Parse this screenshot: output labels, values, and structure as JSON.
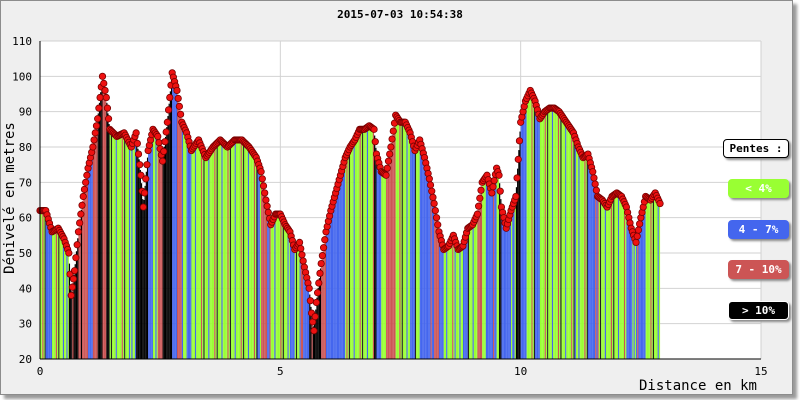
{
  "chart_data": {
    "type": "area",
    "title": "2015-07-03 10:54:38",
    "xlabel": "Distance en km",
    "ylabel": "Dénivelé en metres",
    "xlim": [
      0,
      15
    ],
    "ylim": [
      20,
      110
    ],
    "x_ticks": [
      0,
      5,
      10,
      15
    ],
    "y_ticks": [
      20,
      30,
      40,
      50,
      60,
      70,
      80,
      90,
      100,
      110
    ],
    "grid": true,
    "legend_placement": "right",
    "profile": [
      [
        0.0,
        62
      ],
      [
        0.12,
        62
      ],
      [
        0.25,
        56
      ],
      [
        0.38,
        57
      ],
      [
        0.5,
        54
      ],
      [
        0.6,
        50
      ],
      [
        0.65,
        38
      ],
      [
        0.72,
        45
      ],
      [
        0.8,
        56
      ],
      [
        0.9,
        66
      ],
      [
        1.0,
        74
      ],
      [
        1.1,
        80
      ],
      [
        1.2,
        88
      ],
      [
        1.3,
        100
      ],
      [
        1.38,
        94
      ],
      [
        1.45,
        85
      ],
      [
        1.6,
        83
      ],
      [
        1.75,
        84
      ],
      [
        1.9,
        80
      ],
      [
        2.0,
        84
      ],
      [
        2.1,
        72
      ],
      [
        2.15,
        63
      ],
      [
        2.25,
        79
      ],
      [
        2.35,
        85
      ],
      [
        2.45,
        83
      ],
      [
        2.55,
        76
      ],
      [
        2.65,
        87
      ],
      [
        2.75,
        101
      ],
      [
        2.85,
        96
      ],
      [
        2.95,
        87
      ],
      [
        3.05,
        84
      ],
      [
        3.15,
        79
      ],
      [
        3.3,
        82
      ],
      [
        3.45,
        77
      ],
      [
        3.6,
        80
      ],
      [
        3.75,
        82
      ],
      [
        3.9,
        80
      ],
      [
        4.05,
        82
      ],
      [
        4.2,
        82
      ],
      [
        4.35,
        80
      ],
      [
        4.5,
        77
      ],
      [
        4.6,
        73
      ],
      [
        4.7,
        65
      ],
      [
        4.8,
        58
      ],
      [
        4.9,
        61
      ],
      [
        5.0,
        61
      ],
      [
        5.1,
        58
      ],
      [
        5.2,
        56
      ],
      [
        5.3,
        51
      ],
      [
        5.4,
        53
      ],
      [
        5.5,
        46
      ],
      [
        5.6,
        40
      ],
      [
        5.65,
        33
      ],
      [
        5.7,
        28
      ],
      [
        5.75,
        36
      ],
      [
        5.85,
        47
      ],
      [
        5.95,
        56
      ],
      [
        6.05,
        62
      ],
      [
        6.15,
        67
      ],
      [
        6.25,
        72
      ],
      [
        6.35,
        77
      ],
      [
        6.45,
        80
      ],
      [
        6.55,
        82
      ],
      [
        6.65,
        85
      ],
      [
        6.75,
        85
      ],
      [
        6.85,
        86
      ],
      [
        6.95,
        85
      ],
      [
        7.0,
        78
      ],
      [
        7.1,
        73
      ],
      [
        7.2,
        72
      ],
      [
        7.3,
        80
      ],
      [
        7.4,
        89
      ],
      [
        7.5,
        87
      ],
      [
        7.6,
        87
      ],
      [
        7.7,
        84
      ],
      [
        7.8,
        79
      ],
      [
        7.9,
        82
      ],
      [
        8.0,
        77
      ],
      [
        8.1,
        71
      ],
      [
        8.2,
        64
      ],
      [
        8.3,
        56
      ],
      [
        8.4,
        51
      ],
      [
        8.5,
        52
      ],
      [
        8.6,
        55
      ],
      [
        8.7,
        51
      ],
      [
        8.8,
        52
      ],
      [
        8.9,
        57
      ],
      [
        9.0,
        58
      ],
      [
        9.1,
        61
      ],
      [
        9.2,
        70
      ],
      [
        9.3,
        72
      ],
      [
        9.4,
        67
      ],
      [
        9.5,
        74
      ],
      [
        9.55,
        72
      ],
      [
        9.6,
        63
      ],
      [
        9.7,
        57
      ],
      [
        9.8,
        62
      ],
      [
        9.9,
        66
      ],
      [
        10.0,
        87
      ],
      [
        10.1,
        93
      ],
      [
        10.2,
        96
      ],
      [
        10.3,
        93
      ],
      [
        10.4,
        88
      ],
      [
        10.5,
        90
      ],
      [
        10.6,
        91
      ],
      [
        10.7,
        91
      ],
      [
        10.8,
        90
      ],
      [
        10.9,
        88
      ],
      [
        11.0,
        86
      ],
      [
        11.1,
        84
      ],
      [
        11.2,
        80
      ],
      [
        11.3,
        77
      ],
      [
        11.4,
        78
      ],
      [
        11.5,
        73
      ],
      [
        11.6,
        66
      ],
      [
        11.7,
        65
      ],
      [
        11.8,
        63
      ],
      [
        11.9,
        66
      ],
      [
        12.0,
        67
      ],
      [
        12.1,
        66
      ],
      [
        12.2,
        63
      ],
      [
        12.3,
        57
      ],
      [
        12.4,
        53
      ],
      [
        12.5,
        60
      ],
      [
        12.6,
        66
      ],
      [
        12.7,
        65
      ],
      [
        12.8,
        67
      ],
      [
        12.9,
        64
      ]
    ],
    "legend": {
      "title": "Pentes :",
      "items": [
        {
          "label": "< 4%",
          "color": "#99ff33",
          "text_color": "#ffffff"
        },
        {
          "label": "4 - 7%",
          "color": "#4466ee",
          "text_color": "#ffffff"
        },
        {
          "label": "7 - 10%",
          "color": "#cc5555",
          "text_color": "#ffffff"
        },
        {
          "label": "> 10%",
          "color": "#000000",
          "text_color": "#ffffff"
        }
      ]
    },
    "colors": {
      "marker": "#ee1111",
      "marker_edge": "#770000",
      "grid": "#d2d2d2",
      "plot_bg": "#ffffff"
    }
  }
}
